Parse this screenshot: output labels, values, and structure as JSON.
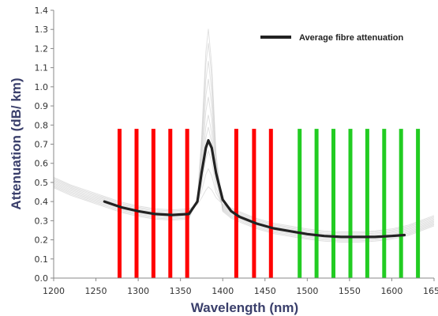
{
  "chart_data": {
    "type": "line",
    "xlabel": "Wavelength (nm)",
    "ylabel": "Attenuation (dB/ km)",
    "xlim": [
      1200,
      1650
    ],
    "ylim": [
      0.0,
      1.4
    ],
    "x_ticks": [
      "1200",
      "1250",
      "1300",
      "1350",
      "1400",
      "1450",
      "1500",
      "1550",
      "1600",
      "1650"
    ],
    "y_ticks": [
      "0.0",
      "0.1",
      "0.2",
      "0.3",
      "0.4",
      "0.5",
      "0.6",
      "0.7",
      "0.8",
      "0.9",
      "1.0",
      "1.1",
      "1.2",
      "1.3",
      "1.4"
    ],
    "grid": false,
    "legend_position": "top-right",
    "series": [
      {
        "name": "Average fibre attenuation",
        "color": "#222222",
        "x": [
          1260,
          1280,
          1300,
          1320,
          1340,
          1360,
          1370,
          1375,
          1380,
          1383,
          1387,
          1392,
          1400,
          1410,
          1420,
          1440,
          1460,
          1480,
          1500,
          1520,
          1540,
          1560,
          1580,
          1600,
          1615
        ],
        "y": [
          0.4,
          0.37,
          0.35,
          0.335,
          0.33,
          0.335,
          0.4,
          0.55,
          0.68,
          0.72,
          0.68,
          0.55,
          0.41,
          0.35,
          0.32,
          0.285,
          0.26,
          0.245,
          0.23,
          0.22,
          0.215,
          0.215,
          0.215,
          0.22,
          0.225
        ]
      }
    ],
    "background_curves": {
      "color": "#c8c8c8",
      "x": [
        1200,
        1220,
        1240,
        1260,
        1280,
        1300,
        1320,
        1340,
        1360,
        1370,
        1375,
        1380,
        1383,
        1387,
        1392,
        1400,
        1410,
        1420,
        1440,
        1460,
        1480,
        1500,
        1520,
        1540,
        1560,
        1580,
        1600,
        1620,
        1650
      ],
      "peaks": [
        1.33,
        1.25,
        1.15,
        1.05,
        0.95,
        0.85,
        0.78,
        0.65,
        0.55,
        0.45
      ],
      "base": [
        0.5,
        0.46,
        0.43,
        0.4,
        0.37,
        0.35,
        0.335,
        0.33,
        0.335,
        0.36,
        0.4,
        0.45,
        0.47,
        0.45,
        0.4,
        0.36,
        0.34,
        0.32,
        0.285,
        0.26,
        0.245,
        0.23,
        0.22,
        0.215,
        0.215,
        0.22,
        0.23,
        0.25,
        0.3
      ]
    },
    "channel_bars": [
      {
        "x": 1278,
        "color": "#ff0000"
      },
      {
        "x": 1298,
        "color": "#ff0000"
      },
      {
        "x": 1318,
        "color": "#ff0000"
      },
      {
        "x": 1338,
        "color": "#ff0000"
      },
      {
        "x": 1358,
        "color": "#ff0000"
      },
      {
        "x": 1416,
        "color": "#ff0000"
      },
      {
        "x": 1437,
        "color": "#ff0000"
      },
      {
        "x": 1457,
        "color": "#ff0000"
      },
      {
        "x": 1491,
        "color": "#22cc22"
      },
      {
        "x": 1511,
        "color": "#22cc22"
      },
      {
        "x": 1531,
        "color": "#22cc22"
      },
      {
        "x": 1551,
        "color": "#22cc22"
      },
      {
        "x": 1571,
        "color": "#22cc22"
      },
      {
        "x": 1591,
        "color": "#22cc22"
      },
      {
        "x": 1611,
        "color": "#22cc22"
      },
      {
        "x": 1631,
        "color": "#22cc22"
      }
    ],
    "channel_bar_top": 0.78
  }
}
